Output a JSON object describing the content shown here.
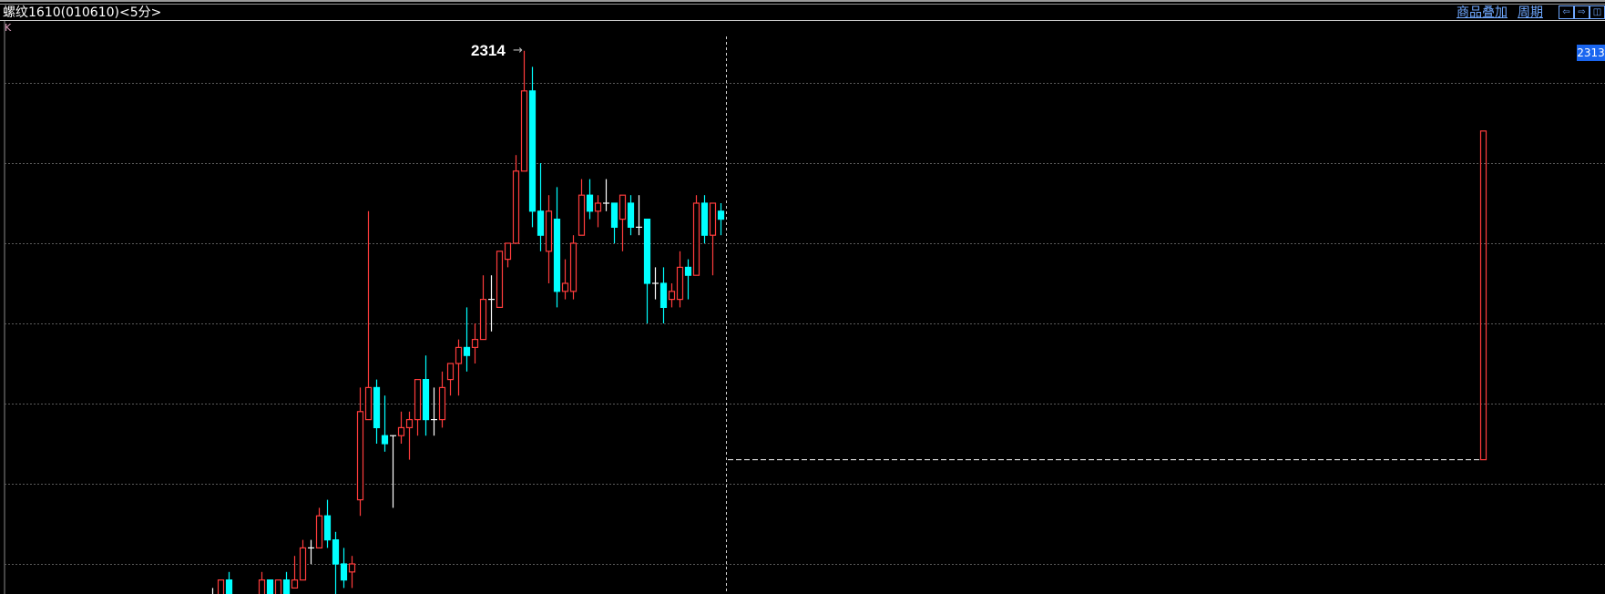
{
  "header": {
    "title": "螺纹1610(010610)<5分>",
    "chart_label": "K",
    "overlay_label": "商品叠加",
    "period_label": "周期",
    "buttons": [
      {
        "name": "scroll-left-button",
        "icon": "arrow-left-icon",
        "glyph": "⇦"
      },
      {
        "name": "scroll-right-button",
        "icon": "arrow-right-icon",
        "glyph": "⇨"
      },
      {
        "name": "panel-toggle-button",
        "icon": "panel-icon",
        "glyph": "◫"
      }
    ]
  },
  "price_tag": "2313",
  "high_marker": {
    "label": "2314",
    "arrow": "→"
  },
  "colors": {
    "up": "#ff3c3c",
    "down": "#00ffff",
    "doji": "#ffffff",
    "grid": "#5a5a5a",
    "accent": "#6fa8ff",
    "tag_bg": "#1a66f0"
  },
  "chart_data": {
    "type": "candlestick",
    "grid": true,
    "grid_levels": [
      2310,
      2300,
      2290,
      2280,
      2270,
      2260,
      2250
    ],
    "candles": [
      [
        2246,
        2247,
        2245,
        2246
      ],
      [
        2244,
        2248,
        2243,
        2248
      ],
      [
        2248,
        2249,
        2243,
        2244
      ],
      null,
      null,
      null,
      [
        2244,
        2249,
        2243,
        2248
      ],
      [
        2248,
        2248,
        2243,
        2244
      ],
      [
        2244,
        2248,
        2243,
        2248
      ],
      [
        2248,
        2249,
        2243,
        2244
      ],
      [
        2247,
        2251,
        2247,
        2248
      ],
      [
        2248,
        2253,
        2248,
        2252
      ],
      [
        2252,
        2253,
        2250,
        2252
      ],
      [
        2252,
        2257,
        2252,
        2256
      ],
      [
        2256,
        2258,
        2252,
        2253
      ],
      [
        2253,
        2254,
        2245,
        2250
      ],
      [
        2250,
        2252,
        2247,
        2248
      ],
      [
        2249,
        2251,
        2247,
        2250
      ],
      [
        2258,
        2272,
        2256,
        2269
      ],
      [
        2268,
        2294,
        2268,
        2272
      ],
      [
        2272,
        2273,
        2265,
        2267
      ],
      [
        2266,
        2271,
        2264,
        2265
      ],
      [
        2266,
        2266,
        2257,
        2266
      ],
      [
        2266,
        2269,
        2265,
        2267
      ],
      [
        2267,
        2269,
        2263,
        2268
      ],
      [
        2268,
        2273,
        2266,
        2273
      ],
      [
        2273,
        2276,
        2266,
        2268
      ],
      [
        2268,
        2272,
        2266,
        2268
      ],
      [
        2268,
        2274,
        2267,
        2272
      ],
      [
        2273,
        2275,
        2271,
        2275
      ],
      [
        2275,
        2278,
        2271,
        2277
      ],
      [
        2277,
        2282,
        2274,
        2276
      ],
      [
        2277,
        2280,
        2275,
        2278
      ],
      [
        2278,
        2286,
        2278,
        2283
      ],
      [
        2283,
        2286,
        2279,
        2283
      ],
      [
        2282,
        2289,
        2282,
        2289
      ],
      [
        2288,
        2290,
        2287,
        2290
      ],
      [
        2290,
        2301,
        2290,
        2299
      ],
      [
        2299,
        2314,
        2299,
        2309
      ],
      [
        2309,
        2312,
        2292,
        2294
      ],
      [
        2294,
        2300,
        2289,
        2291
      ],
      [
        2289,
        2296,
        2285,
        2294
      ],
      [
        2293,
        2297,
        2282,
        2284
      ],
      [
        2284,
        2288,
        2283,
        2285
      ],
      [
        2284,
        2291,
        2283,
        2290
      ],
      [
        2291,
        2298,
        2291,
        2296
      ],
      [
        2296,
        2298,
        2293,
        2294
      ],
      [
        2294,
        2296,
        2292,
        2295
      ],
      [
        2295,
        2298,
        2294,
        2295
      ],
      [
        2295,
        2295,
        2290,
        2292
      ],
      [
        2293,
        2296,
        2289,
        2296
      ],
      [
        2295,
        2296,
        2291,
        2292
      ],
      [
        2292,
        2296,
        2291,
        2292
      ],
      [
        2293,
        2293,
        2280,
        2285
      ],
      [
        2285,
        2287,
        2283,
        2285
      ],
      [
        2285,
        2287,
        2280,
        2282
      ],
      [
        2283,
        2285,
        2282,
        2284
      ],
      [
        2283,
        2289,
        2282,
        2287
      ],
      [
        2287,
        2288,
        2283,
        2286
      ],
      [
        2286,
        2296,
        2286,
        2295
      ],
      [
        2295,
        2296,
        2290,
        2291
      ],
      [
        2291,
        2295,
        2286,
        2295
      ],
      [
        2294,
        2295,
        2291,
        2293
      ]
    ],
    "candle_fields": [
      "open",
      "high",
      "low",
      "close"
    ],
    "period_high": 2314,
    "marker_bar": {
      "top": 2304,
      "bottom": 2263
    },
    "reference_line": 2263
  }
}
